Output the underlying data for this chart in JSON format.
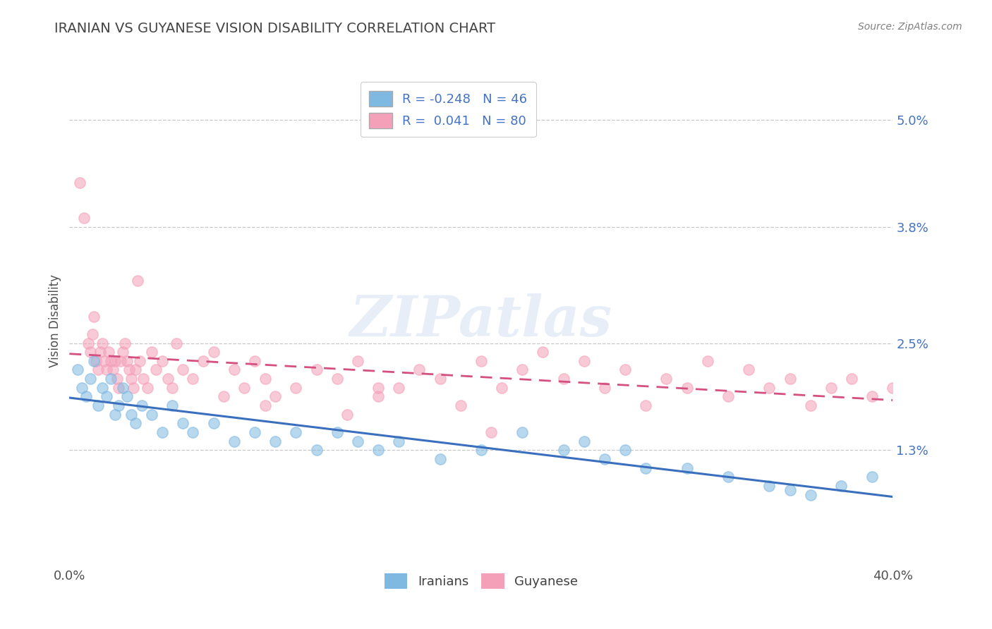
{
  "title": "IRANIAN VS GUYANESE VISION DISABILITY CORRELATION CHART",
  "source": "Source: ZipAtlas.com",
  "ylabel": "Vision Disability",
  "xlim": [
    0.0,
    40.0
  ],
  "ylim": [
    0.0,
    5.5
  ],
  "yticks": [
    1.3,
    2.5,
    3.8,
    5.0
  ],
  "ytick_labels": [
    "1.3%",
    "2.5%",
    "3.8%",
    "5.0%"
  ],
  "xticks": [
    0.0,
    40.0
  ],
  "xtick_labels": [
    "0.0%",
    "40.0%"
  ],
  "legend_r_iranian": "-0.248",
  "legend_n_iranian": "46",
  "legend_r_guyanese": "0.041",
  "legend_n_guyanese": "80",
  "color_iranian": "#7fb8e0",
  "color_guyanese": "#f4a0b8",
  "color_line_iranian": "#3a6fbd",
  "color_line_guyanese": "#d45080",
  "background_color": "#ffffff",
  "title_color": "#444444",
  "title_fontsize": 14,
  "watermark_text": "ZIPatlas",
  "iranians_x": [
    0.4,
    0.6,
    0.8,
    1.0,
    1.2,
    1.4,
    1.6,
    1.8,
    2.0,
    2.2,
    2.4,
    2.6,
    2.8,
    3.0,
    3.2,
    3.5,
    4.0,
    4.5,
    5.0,
    5.5,
    6.0,
    7.0,
    8.0,
    9.0,
    10.0,
    11.0,
    12.0,
    13.0,
    14.0,
    15.0,
    16.0,
    18.0,
    20.0,
    22.0,
    24.0,
    25.0,
    26.0,
    27.0,
    28.0,
    30.0,
    32.0,
    34.0,
    35.0,
    36.0,
    37.5,
    39.0
  ],
  "iranians_y": [
    2.2,
    2.0,
    1.9,
    2.1,
    2.3,
    1.8,
    2.0,
    1.9,
    2.1,
    1.7,
    1.8,
    2.0,
    1.9,
    1.7,
    1.6,
    1.8,
    1.7,
    1.5,
    1.8,
    1.6,
    1.5,
    1.6,
    1.4,
    1.5,
    1.4,
    1.5,
    1.3,
    1.5,
    1.4,
    1.3,
    1.4,
    1.2,
    1.3,
    1.5,
    1.3,
    1.4,
    1.2,
    1.3,
    1.1,
    1.1,
    1.0,
    0.9,
    0.85,
    0.8,
    0.9,
    1.0
  ],
  "guyanese_x": [
    0.5,
    0.7,
    0.9,
    1.0,
    1.1,
    1.2,
    1.3,
    1.4,
    1.5,
    1.6,
    1.7,
    1.8,
    1.9,
    2.0,
    2.1,
    2.2,
    2.3,
    2.4,
    2.5,
    2.6,
    2.7,
    2.8,
    2.9,
    3.0,
    3.1,
    3.2,
    3.4,
    3.6,
    3.8,
    4.0,
    4.2,
    4.5,
    4.8,
    5.0,
    5.5,
    6.0,
    6.5,
    7.0,
    7.5,
    8.0,
    8.5,
    9.0,
    9.5,
    10.0,
    11.0,
    12.0,
    13.0,
    14.0,
    15.0,
    16.0,
    17.0,
    18.0,
    19.0,
    20.0,
    21.0,
    22.0,
    23.0,
    24.0,
    25.0,
    26.0,
    27.0,
    28.0,
    29.0,
    30.0,
    31.0,
    32.0,
    33.0,
    34.0,
    35.0,
    36.0,
    37.0,
    38.0,
    39.0,
    40.0,
    3.3,
    5.2,
    13.5,
    20.5,
    15.0,
    9.5
  ],
  "guyanese_y": [
    4.3,
    3.9,
    2.5,
    2.4,
    2.6,
    2.8,
    2.3,
    2.2,
    2.4,
    2.5,
    2.3,
    2.2,
    2.4,
    2.3,
    2.2,
    2.3,
    2.1,
    2.0,
    2.3,
    2.4,
    2.5,
    2.3,
    2.2,
    2.1,
    2.0,
    2.2,
    2.3,
    2.1,
    2.0,
    2.4,
    2.2,
    2.3,
    2.1,
    2.0,
    2.2,
    2.1,
    2.3,
    2.4,
    1.9,
    2.2,
    2.0,
    2.3,
    2.1,
    1.9,
    2.0,
    2.2,
    2.1,
    2.3,
    1.9,
    2.0,
    2.2,
    2.1,
    1.8,
    2.3,
    2.0,
    2.2,
    2.4,
    2.1,
    2.3,
    2.0,
    2.2,
    1.8,
    2.1,
    2.0,
    2.3,
    1.9,
    2.2,
    2.0,
    2.1,
    1.8,
    2.0,
    2.1,
    1.9,
    2.0,
    3.2,
    2.5,
    1.7,
    1.5,
    2.0,
    1.8
  ]
}
